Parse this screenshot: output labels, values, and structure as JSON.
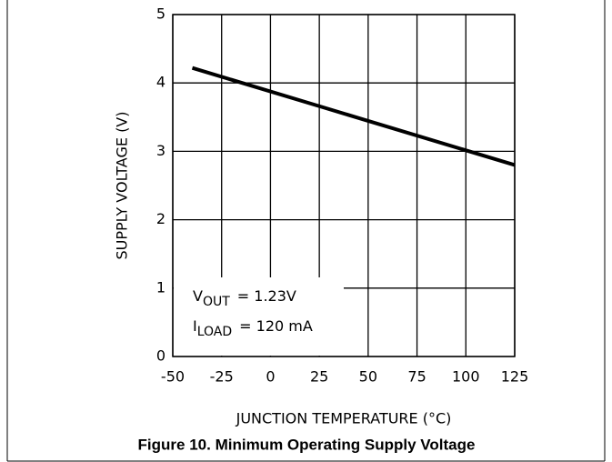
{
  "chart_data": {
    "type": "line",
    "x_label": "JUNCTION TEMPERATURE (°C)",
    "y_label": "SUPPLY VOLTAGE (V)",
    "caption": "Figure 10. Minimum Operating Supply Voltage",
    "x": [
      -40,
      25,
      125
    ],
    "series": [
      {
        "name": null,
        "color": "#000000",
        "values": [
          4.22,
          3.66,
          2.8
        ]
      }
    ],
    "xlim": [
      -50,
      125
    ],
    "xticks": [
      -50,
      -25,
      0,
      25,
      50,
      75,
      100,
      125
    ],
    "ylim": [
      0,
      5
    ],
    "yticks": [
      0,
      1,
      2,
      3,
      4,
      5
    ],
    "grid": true,
    "annotations": [
      {
        "symbol": "V",
        "subscript": "OUT",
        "text": "= 1.23V"
      },
      {
        "symbol": "I",
        "subscript": "LOAD",
        "text": "= 120 mA"
      }
    ]
  }
}
